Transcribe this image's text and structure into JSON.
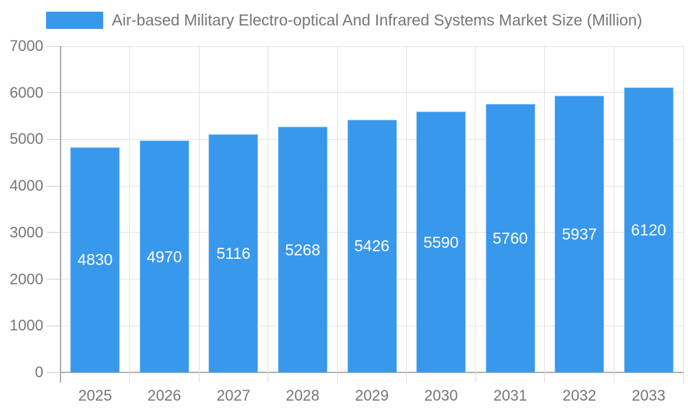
{
  "chart_data": {
    "type": "bar",
    "title": "Air-based Military Electro-optical And Infrared Systems Market Size (Million)",
    "categories": [
      "2025",
      "2026",
      "2027",
      "2028",
      "2029",
      "2030",
      "2031",
      "2032",
      "2033"
    ],
    "values": [
      4830,
      4970,
      5116,
      5268,
      5426,
      5590,
      5760,
      5937,
      6120
    ],
    "series_name": "Air-based Military Electro-optical And Infrared Systems Market Size (Million)",
    "xlabel": "",
    "ylabel": "",
    "ylim": [
      0,
      7000
    ],
    "yticks": [
      0,
      1000,
      2000,
      3000,
      4000,
      5000,
      6000,
      7000
    ],
    "grid": true,
    "legend_position": "top",
    "bar_color": "#3898EC",
    "value_label_color": "#ffffff",
    "axis_text_color": "#757575"
  }
}
